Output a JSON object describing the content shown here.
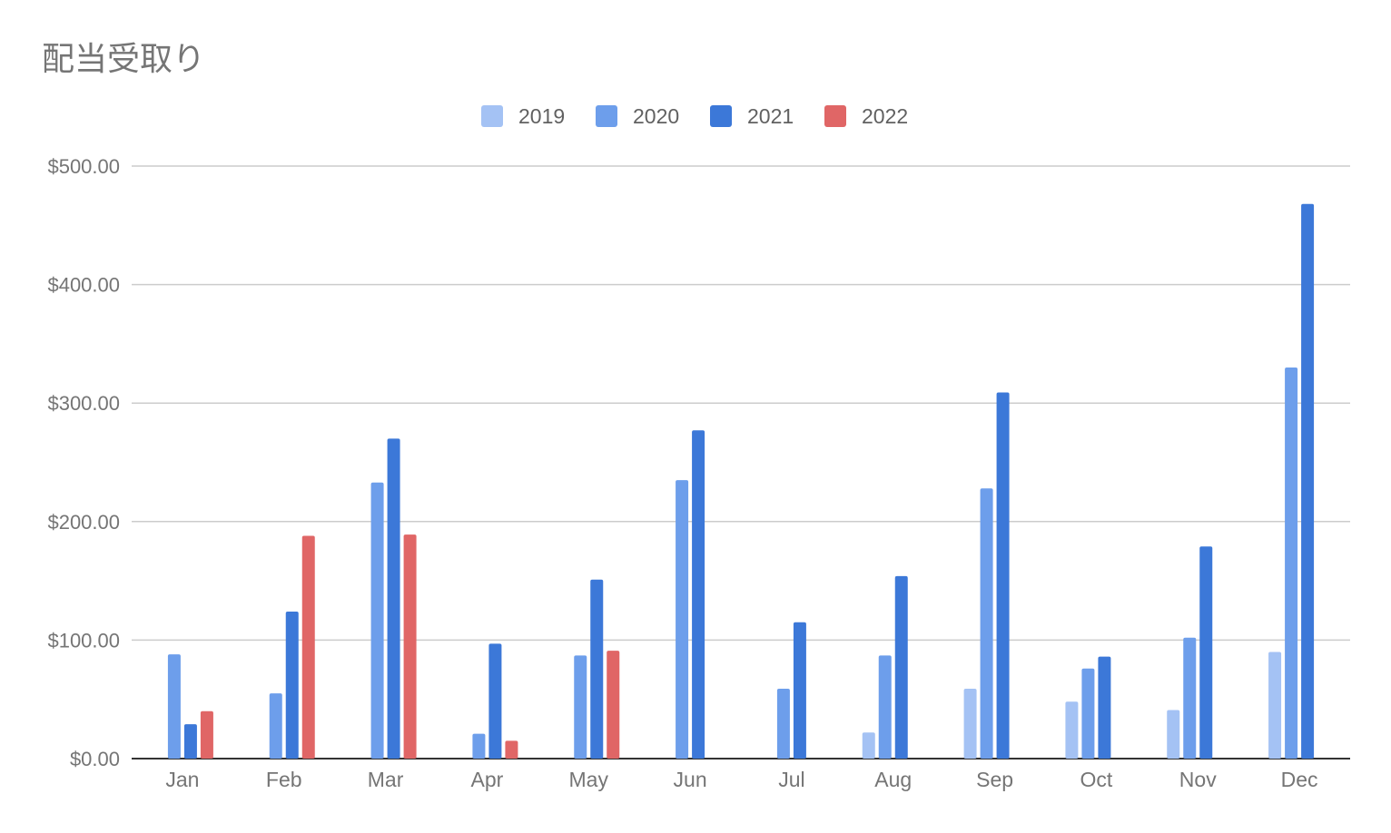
{
  "chart_data": {
    "type": "bar",
    "title": "配当受取り",
    "xlabel": "",
    "ylabel": "",
    "ylim": [
      0,
      500
    ],
    "yticks": [
      "$0.00",
      "$100.00",
      "$200.00",
      "$300.00",
      "$400.00",
      "$500.00"
    ],
    "grid": true,
    "legend_position": "top",
    "categories": [
      "Jan",
      "Feb",
      "Mar",
      "Apr",
      "May",
      "Jun",
      "Jul",
      "Aug",
      "Sep",
      "Oct",
      "Nov",
      "Dec"
    ],
    "series": [
      {
        "name": "2019",
        "color": "#a4c2f4",
        "values": [
          null,
          null,
          null,
          null,
          null,
          null,
          null,
          22,
          59,
          48,
          41,
          90
        ]
      },
      {
        "name": "2020",
        "color": "#6d9eeb",
        "values": [
          88,
          55,
          233,
          21,
          87,
          235,
          59,
          87,
          228,
          76,
          102,
          330
        ]
      },
      {
        "name": "2021",
        "color": "#3c78d8",
        "values": [
          29,
          124,
          270,
          97,
          151,
          277,
          115,
          154,
          309,
          86,
          179,
          468
        ]
      },
      {
        "name": "2022",
        "color": "#e06666",
        "values": [
          40,
          188,
          189,
          15,
          91,
          null,
          null,
          null,
          null,
          null,
          null,
          null
        ]
      }
    ]
  }
}
